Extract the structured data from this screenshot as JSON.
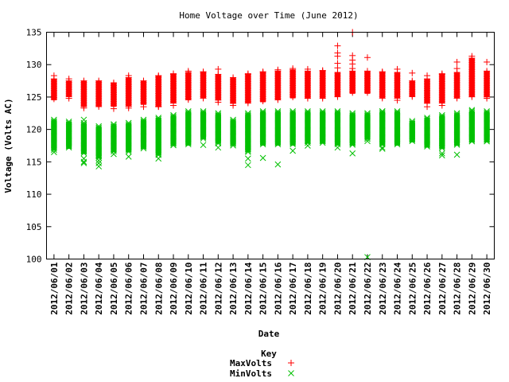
{
  "chart_data": {
    "type": "scatter",
    "title": "Home Voltage over Time (June 2012)",
    "xlabel": "Date",
    "ylabel": "Voltage (Volts AC)",
    "ylim": [
      100,
      135
    ],
    "yticks": [
      100,
      105,
      110,
      115,
      120,
      125,
      130,
      135
    ],
    "grid": false,
    "legend": {
      "title": "Key",
      "placement": "bottom-center"
    },
    "categories": [
      "2012/06/01",
      "2012/06/02",
      "2012/06/03",
      "2012/06/04",
      "2012/06/05",
      "2012/06/06",
      "2012/06/07",
      "2012/06/08",
      "2012/06/09",
      "2012/06/10",
      "2012/06/11",
      "2012/06/12",
      "2012/06/13",
      "2012/06/14",
      "2012/06/15",
      "2012/06/16",
      "2012/06/17",
      "2012/06/18",
      "2012/06/19",
      "2012/06/20",
      "2012/06/21",
      "2012/06/22",
      "2012/06/23",
      "2012/06/24",
      "2012/06/25",
      "2012/06/26",
      "2012/06/27",
      "2012/06/28",
      "2012/06/29",
      "2012/06/30"
    ],
    "series": [
      {
        "name": "MaxVolts",
        "marker": "+",
        "color": "#ff0000",
        "ranges": [
          [
            124.5,
            127.8
          ],
          [
            125.0,
            127.5
          ],
          [
            123.5,
            127.5
          ],
          [
            123.5,
            127.5
          ],
          [
            123.5,
            127.2
          ],
          [
            123.5,
            128.0
          ],
          [
            123.8,
            127.5
          ],
          [
            123.5,
            128.2
          ],
          [
            124.0,
            128.5
          ],
          [
            124.5,
            128.8
          ],
          [
            124.8,
            128.8
          ],
          [
            124.5,
            128.5
          ],
          [
            124.0,
            128.0
          ],
          [
            124.0,
            128.5
          ],
          [
            124.2,
            128.8
          ],
          [
            124.5,
            129.0
          ],
          [
            124.8,
            129.2
          ],
          [
            124.8,
            129.0
          ],
          [
            124.8,
            129.0
          ],
          [
            125.0,
            128.8
          ],
          [
            125.5,
            129.0
          ],
          [
            125.5,
            129.0
          ],
          [
            124.8,
            128.8
          ],
          [
            124.8,
            128.8
          ],
          [
            125.0,
            127.5
          ],
          [
            124.0,
            127.8
          ],
          [
            124.0,
            128.5
          ],
          [
            124.8,
            128.8
          ],
          [
            125.0,
            131.0
          ],
          [
            125.0,
            129.0
          ]
        ],
        "outliers": [
          [
            0,
            128.3
          ],
          [
            1,
            127.8
          ],
          [
            1,
            124.8
          ],
          [
            2,
            123.3
          ],
          [
            4,
            123.2
          ],
          [
            5,
            128.3
          ],
          [
            5,
            123.3
          ],
          [
            6,
            123.5
          ],
          [
            7,
            128.3
          ],
          [
            7,
            123.5
          ],
          [
            8,
            128.6
          ],
          [
            8,
            123.7
          ],
          [
            9,
            129.0
          ],
          [
            10,
            128.9
          ],
          [
            11,
            129.3
          ],
          [
            11,
            124.2
          ],
          [
            12,
            123.7
          ],
          [
            13,
            128.6
          ],
          [
            14,
            128.9
          ],
          [
            15,
            129.2
          ],
          [
            16,
            129.4
          ],
          [
            17,
            129.3
          ],
          [
            18,
            129.1
          ],
          [
            19,
            132.9
          ],
          [
            19,
            131.8
          ],
          [
            19,
            131.3
          ],
          [
            19,
            130.2
          ],
          [
            19,
            129.5
          ],
          [
            20,
            135.0
          ],
          [
            20,
            131.4
          ],
          [
            20,
            130.7
          ],
          [
            20,
            130.1
          ],
          [
            20,
            129.4
          ],
          [
            21,
            131.1
          ],
          [
            22,
            128.9
          ],
          [
            23,
            129.3
          ],
          [
            23,
            124.5
          ],
          [
            24,
            128.7
          ],
          [
            25,
            128.3
          ],
          [
            25,
            123.5
          ],
          [
            26,
            128.6
          ],
          [
            26,
            123.7
          ],
          [
            27,
            130.4
          ],
          [
            27,
            129.4
          ],
          [
            28,
            131.3
          ],
          [
            29,
            130.4
          ],
          [
            29,
            124.8
          ]
        ]
      },
      {
        "name": "MinVolts",
        "marker": "x",
        "color": "#00c000",
        "ranges": [
          [
            116.8,
            121.5
          ],
          [
            117.0,
            121.2
          ],
          [
            116.2,
            121.0
          ],
          [
            115.5,
            120.5
          ],
          [
            116.5,
            120.8
          ],
          [
            116.5,
            121.0
          ],
          [
            117.0,
            121.5
          ],
          [
            116.0,
            121.8
          ],
          [
            117.5,
            122.2
          ],
          [
            117.5,
            122.8
          ],
          [
            118.5,
            122.8
          ],
          [
            117.8,
            122.5
          ],
          [
            117.5,
            121.5
          ],
          [
            116.5,
            122.5
          ],
          [
            117.5,
            122.8
          ],
          [
            117.5,
            122.8
          ],
          [
            117.5,
            122.8
          ],
          [
            117.8,
            122.8
          ],
          [
            117.8,
            122.8
          ],
          [
            117.5,
            122.8
          ],
          [
            117.5,
            122.5
          ],
          [
            118.5,
            122.5
          ],
          [
            117.5,
            122.8
          ],
          [
            117.5,
            122.8
          ],
          [
            118.0,
            121.3
          ],
          [
            117.2,
            121.8
          ],
          [
            117.0,
            122.2
          ],
          [
            117.5,
            122.5
          ],
          [
            118.0,
            122.8
          ],
          [
            118.0,
            122.8
          ]
        ],
        "outliers": [
          [
            0,
            116.5
          ],
          [
            2,
            121.5
          ],
          [
            2,
            115.5
          ],
          [
            2,
            115.0
          ],
          [
            2,
            114.8
          ],
          [
            3,
            115.2
          ],
          [
            3,
            114.8
          ],
          [
            3,
            114.3
          ],
          [
            4,
            116.2
          ],
          [
            5,
            115.8
          ],
          [
            7,
            115.5
          ],
          [
            10,
            117.6
          ],
          [
            11,
            117.2
          ],
          [
            13,
            115.5
          ],
          [
            13,
            114.5
          ],
          [
            14,
            115.6
          ],
          [
            15,
            114.6
          ],
          [
            16,
            116.7
          ],
          [
            17,
            117.5
          ],
          [
            19,
            117.2
          ],
          [
            20,
            116.3
          ],
          [
            21,
            100.3
          ],
          [
            21,
            118.2
          ],
          [
            22,
            122.8
          ],
          [
            22,
            117.2
          ],
          [
            22,
            117.0
          ],
          [
            26,
            116.3
          ],
          [
            26,
            116.0
          ],
          [
            27,
            116.1
          ],
          [
            28,
            123.0
          ]
        ]
      }
    ]
  }
}
